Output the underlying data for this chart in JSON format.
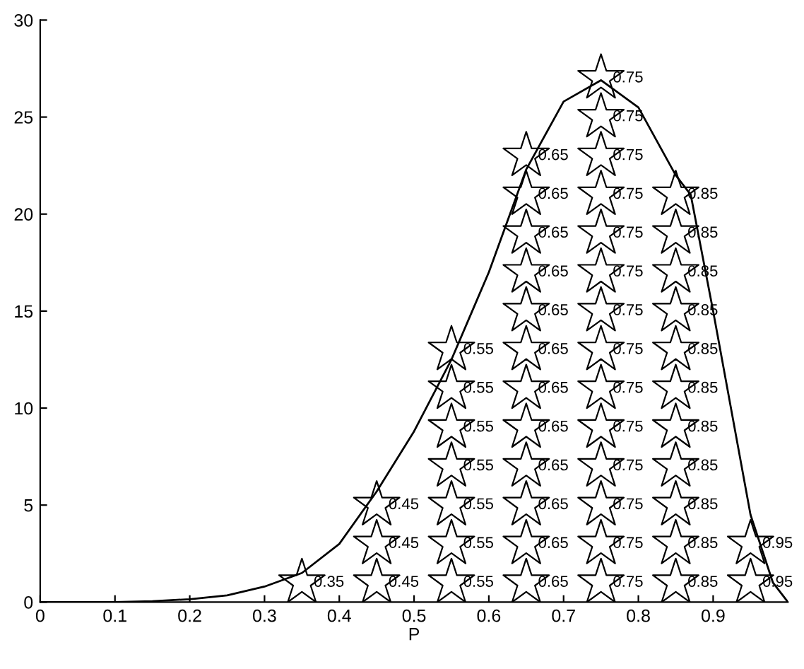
{
  "chart_data": {
    "type": "scatter",
    "xlabel": "P",
    "xlim": [
      0,
      1
    ],
    "ylim": [
      0,
      30
    ],
    "xticks": [
      0,
      0.1,
      0.2,
      0.3,
      0.4,
      0.5,
      0.6,
      0.7,
      0.8,
      0.9
    ],
    "yticks": [
      0,
      5,
      10,
      15,
      20,
      25,
      30
    ],
    "grid": false,
    "legend": false,
    "series": [
      {
        "marker": "star",
        "color": "#000000",
        "x": [
          0.35,
          0.45,
          0.45,
          0.45,
          0.55,
          0.55,
          0.55,
          0.55,
          0.55,
          0.55,
          0.55,
          0.65,
          0.65,
          0.65,
          0.65,
          0.65,
          0.65,
          0.65,
          0.65,
          0.65,
          0.65,
          0.65,
          0.65,
          0.75,
          0.75,
          0.75,
          0.75,
          0.75,
          0.75,
          0.75,
          0.75,
          0.75,
          0.75,
          0.75,
          0.75,
          0.75,
          0.75,
          0.85,
          0.85,
          0.85,
          0.85,
          0.85,
          0.85,
          0.85,
          0.85,
          0.85,
          0.85,
          0.85,
          0.95,
          0.95
        ],
        "values": [
          1,
          1,
          3,
          5,
          1,
          3,
          5,
          7,
          9,
          11,
          13,
          1,
          3,
          5,
          7,
          9,
          11,
          13,
          15,
          17,
          19,
          21,
          23,
          1,
          3,
          5,
          7,
          9,
          11,
          13,
          15,
          17,
          19,
          21,
          23,
          25,
          27,
          1,
          3,
          5,
          7,
          9,
          11,
          13,
          15,
          17,
          19,
          21,
          1,
          3
        ]
      },
      {
        "type": "line",
        "marker": "none",
        "line_style": "solid",
        "color": "#000000",
        "x": [
          0,
          0.1,
          0.15,
          0.2,
          0.25,
          0.3,
          0.35,
          0.4,
          0.45,
          0.5,
          0.55,
          0.58,
          0.6,
          0.65,
          0.7,
          0.75,
          0.8,
          0.85,
          0.87,
          0.9,
          0.95,
          0.98,
          1.0
        ],
        "values": [
          0,
          0,
          0.05,
          0.15,
          0.35,
          0.8,
          1.5,
          3,
          5.7,
          8.8,
          12.5,
          15.2,
          17,
          22.3,
          25.8,
          26.9,
          25.5,
          22,
          21,
          15,
          4.5,
          1,
          0
        ]
      }
    ],
    "annotations": [
      {
        "text": "0.35",
        "x": 0.35,
        "y": 1
      },
      {
        "text": "0.45",
        "x": 0.45,
        "y": 1
      },
      {
        "text": "0.45",
        "x": 0.45,
        "y": 3
      },
      {
        "text": "0.45",
        "x": 0.45,
        "y": 5
      },
      {
        "text": "0.55",
        "x": 0.55,
        "y": 1
      },
      {
        "text": "0.55",
        "x": 0.55,
        "y": 3
      },
      {
        "text": "0.55",
        "x": 0.55,
        "y": 5
      },
      {
        "text": "0.55",
        "x": 0.55,
        "y": 7
      },
      {
        "text": "0.55",
        "x": 0.55,
        "y": 9
      },
      {
        "text": "0.55",
        "x": 0.55,
        "y": 11
      },
      {
        "text": "0.55",
        "x": 0.55,
        "y": 13
      },
      {
        "text": "0.65",
        "x": 0.65,
        "y": 1
      },
      {
        "text": "0.65",
        "x": 0.65,
        "y": 3
      },
      {
        "text": "0.65",
        "x": 0.65,
        "y": 5
      },
      {
        "text": "0.65",
        "x": 0.65,
        "y": 7
      },
      {
        "text": "0.65",
        "x": 0.65,
        "y": 9
      },
      {
        "text": "0.65",
        "x": 0.65,
        "y": 11
      },
      {
        "text": "0.65",
        "x": 0.65,
        "y": 13
      },
      {
        "text": "0.65",
        "x": 0.65,
        "y": 15
      },
      {
        "text": "0.65",
        "x": 0.65,
        "y": 17
      },
      {
        "text": "0.65",
        "x": 0.65,
        "y": 19
      },
      {
        "text": "0.65",
        "x": 0.65,
        "y": 21
      },
      {
        "text": "0.65",
        "x": 0.65,
        "y": 23
      },
      {
        "text": "0.75",
        "x": 0.75,
        "y": 1
      },
      {
        "text": "0.75",
        "x": 0.75,
        "y": 3
      },
      {
        "text": "0.75",
        "x": 0.75,
        "y": 5
      },
      {
        "text": "0.75",
        "x": 0.75,
        "y": 7
      },
      {
        "text": "0.75",
        "x": 0.75,
        "y": 9
      },
      {
        "text": "0.75",
        "x": 0.75,
        "y": 11
      },
      {
        "text": "0.75",
        "x": 0.75,
        "y": 13
      },
      {
        "text": "0.75",
        "x": 0.75,
        "y": 15
      },
      {
        "text": "0.75",
        "x": 0.75,
        "y": 17
      },
      {
        "text": "0.75",
        "x": 0.75,
        "y": 19
      },
      {
        "text": "0.75",
        "x": 0.75,
        "y": 21
      },
      {
        "text": "0.75",
        "x": 0.75,
        "y": 23
      },
      {
        "text": "0.75",
        "x": 0.75,
        "y": 25
      },
      {
        "text": "0.75",
        "x": 0.75,
        "y": 27
      },
      {
        "text": "0.85",
        "x": 0.85,
        "y": 1
      },
      {
        "text": "0.85",
        "x": 0.85,
        "y": 3
      },
      {
        "text": "0.85",
        "x": 0.85,
        "y": 5
      },
      {
        "text": "0.85",
        "x": 0.85,
        "y": 7
      },
      {
        "text": "0.85",
        "x": 0.85,
        "y": 9
      },
      {
        "text": "0.85",
        "x": 0.85,
        "y": 11
      },
      {
        "text": "0.85",
        "x": 0.85,
        "y": 13
      },
      {
        "text": "0.85",
        "x": 0.85,
        "y": 15
      },
      {
        "text": "0.85",
        "x": 0.85,
        "y": 17
      },
      {
        "text": "0.85",
        "x": 0.85,
        "y": 19
      },
      {
        "text": "0.85",
        "x": 0.85,
        "y": 21
      },
      {
        "text": "0.95",
        "x": 0.95,
        "y": 1
      },
      {
        "text": "0.95",
        "x": 0.95,
        "y": 3
      }
    ]
  }
}
